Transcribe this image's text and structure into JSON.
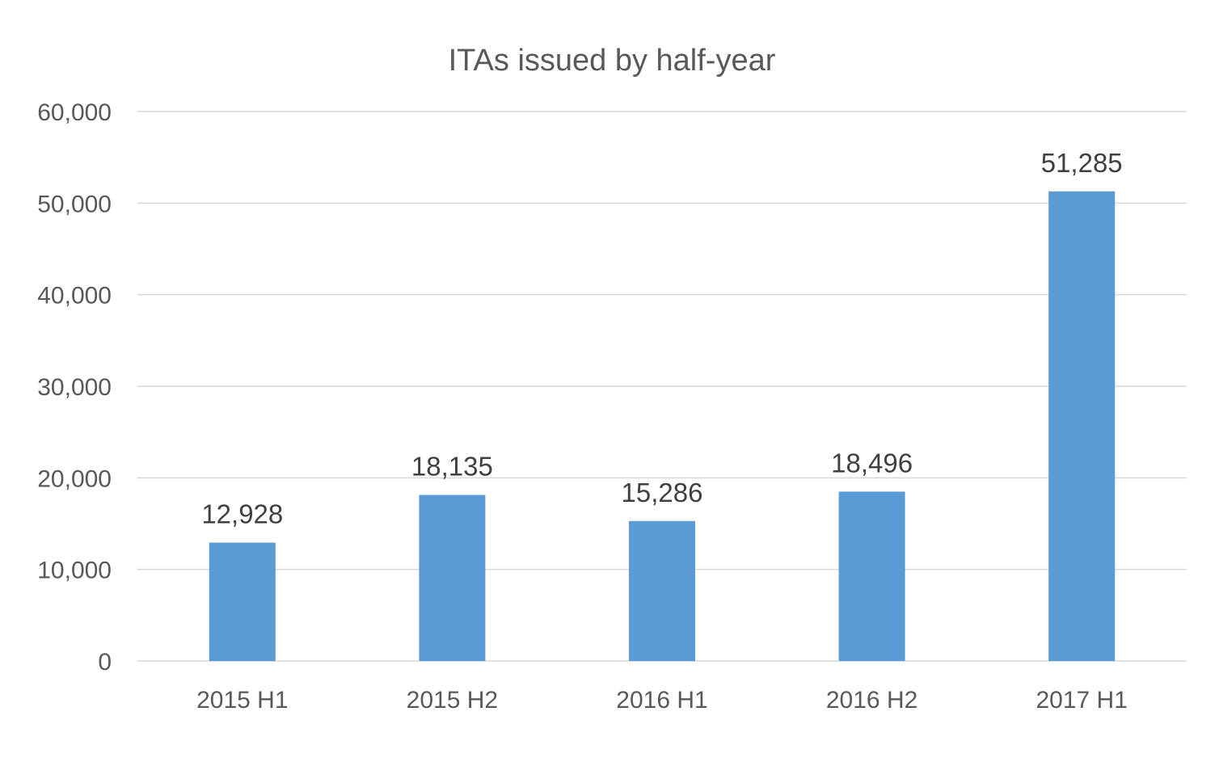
{
  "chart_data": {
    "type": "bar",
    "title": "ITAs issued by half-year",
    "categories": [
      "2015 H1",
      "2015 H2",
      "2016 H1",
      "2016 H2",
      "2017 H1"
    ],
    "values": [
      12928,
      18135,
      15286,
      18496,
      51285
    ],
    "data_labels": [
      "12,928",
      "18,135",
      "15,286",
      "18,496",
      "51,285"
    ],
    "xlabel": "",
    "ylabel": "",
    "ylim": [
      0,
      60000
    ],
    "yticks": [
      0,
      10000,
      20000,
      30000,
      40000,
      50000,
      60000
    ],
    "ytick_labels": [
      "0",
      "10,000",
      "20,000",
      "30,000",
      "40,000",
      "50,000",
      "60,000"
    ],
    "grid": true,
    "legend": "none",
    "bar_color": "#5b9bd5"
  }
}
